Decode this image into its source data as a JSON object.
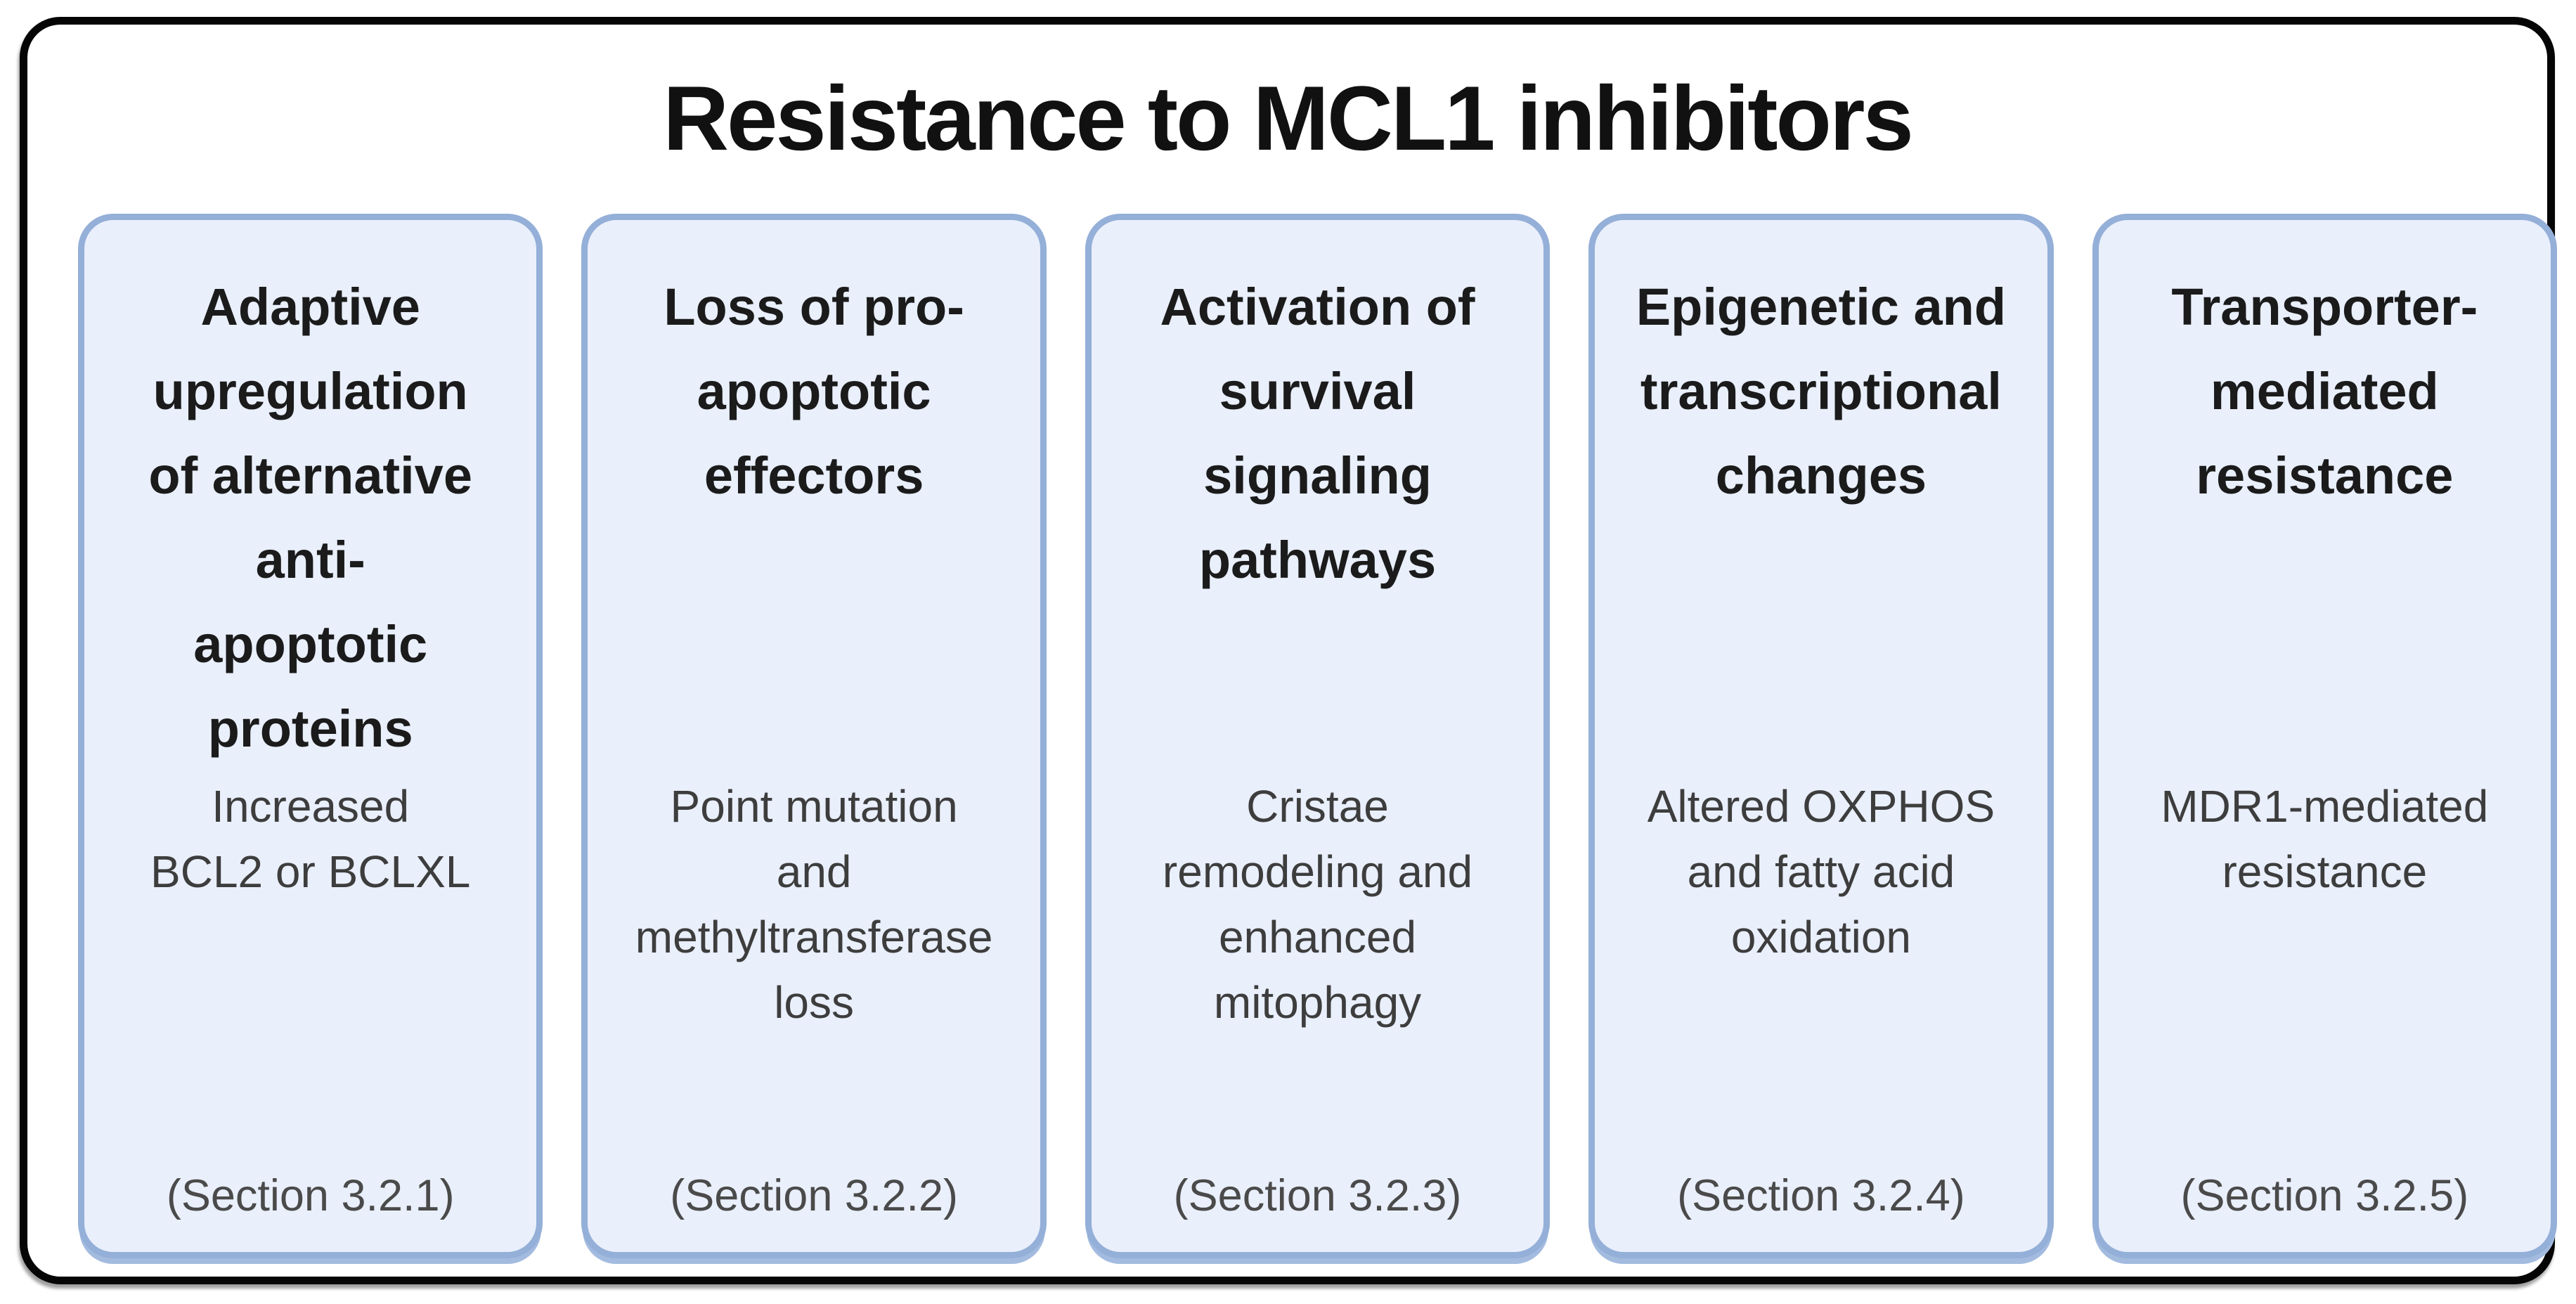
{
  "title": "Resistance to MCL1 inhibitors",
  "colors": {
    "card_fill": "#e9effb",
    "card_border": "#94afd8",
    "frame_border": "#050505",
    "heading_text": "#1b1b1b",
    "body_text": "#3d3d3d",
    "section_text": "#4a4a4a"
  },
  "cards": [
    {
      "heading": "Adaptive\nupregulation\nof alternative\nanti-\napoptotic\nproteins",
      "body": "Increased\nBCL2 or BCLXL",
      "section": "(Section 3.2.1)"
    },
    {
      "heading": "Loss of pro-\napoptotic\neffectors",
      "body": "Point mutation\nand\nmethyltransferase\nloss",
      "section": "(Section 3.2.2)"
    },
    {
      "heading": "Activation of\nsurvival\nsignaling\npathways",
      "body": "Cristae\nremodeling and\nenhanced\nmitophagy",
      "section": "(Section 3.2.3)"
    },
    {
      "heading": "Epigenetic and\ntranscriptional\nchanges",
      "body": "Altered OXPHOS\nand fatty acid\noxidation",
      "section": "(Section 3.2.4)"
    },
    {
      "heading": "Transporter-\nmediated\nresistance",
      "body": "MDR1-mediated\nresistance",
      "section": "(Section 3.2.5)"
    }
  ]
}
